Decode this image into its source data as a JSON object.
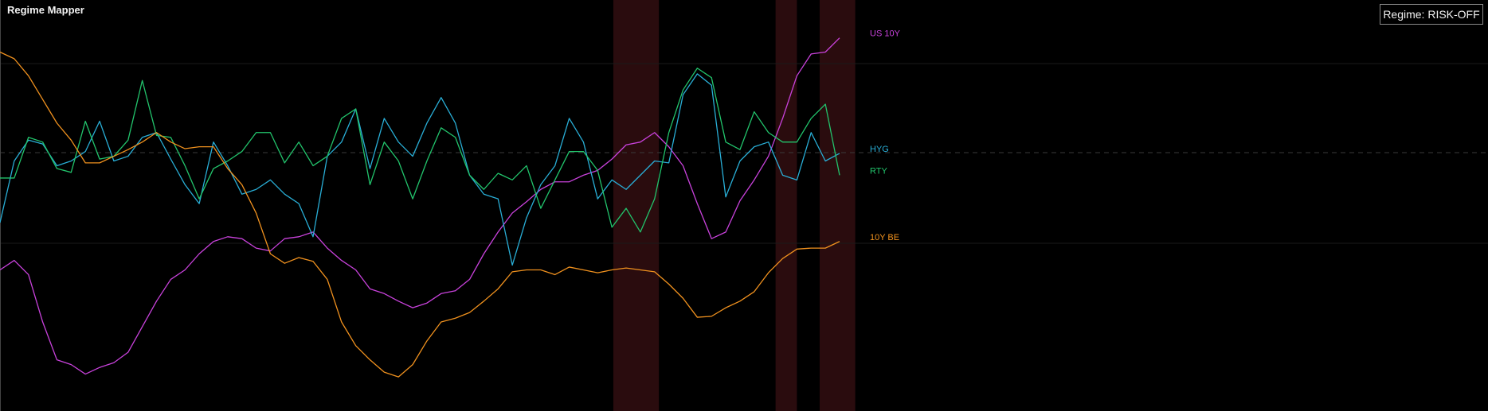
{
  "chart_data": {
    "type": "line",
    "title": "Regime Mapper",
    "regime_badge": "Regime: RISK-OFF",
    "x": [
      0,
      1,
      2,
      3,
      4,
      5,
      6,
      7,
      8,
      9,
      10,
      11,
      12,
      13,
      14,
      15,
      16,
      17,
      18,
      19,
      20,
      21,
      22,
      23,
      24,
      25,
      26,
      27,
      28,
      29,
      30,
      31,
      32,
      33,
      34,
      35,
      36,
      37,
      38,
      39,
      40,
      41,
      42,
      43,
      44,
      45,
      46,
      47,
      48,
      49,
      50,
      51,
      52,
      53,
      54,
      55,
      56,
      57,
      58,
      59
    ],
    "xlim": [
      0,
      59
    ],
    "ylim": [
      0,
      434
    ],
    "shaded_ranges": [
      [
        43.1,
        46.3
      ],
      [
        54.5,
        56
      ],
      [
        57.6,
        60.1
      ]
    ],
    "shade_color": "#2a0c0e",
    "series": [
      {
        "name": "US 10Y",
        "color": "#c942dc",
        "values": [
          149,
          159,
          144,
          94,
          54,
          49,
          39,
          46,
          51,
          62,
          89,
          116,
          139,
          149,
          166,
          179,
          184,
          182,
          172,
          169,
          182,
          184,
          189,
          172,
          159,
          149,
          129,
          124,
          116,
          109,
          114,
          124,
          127,
          139,
          166,
          189,
          209,
          221,
          234,
          242,
          242,
          249,
          254,
          266,
          281,
          284,
          294,
          279,
          259,
          219,
          182,
          189,
          222,
          244,
          269,
          309,
          354,
          377,
          379,
          394
        ]
      },
      {
        "name": "HYG",
        "color": "#29aed6",
        "values": [
          199,
          264,
          286,
          282,
          259,
          264,
          274,
          306,
          264,
          269,
          289,
          294,
          266,
          239,
          219,
          284,
          259,
          229,
          234,
          244,
          229,
          219,
          184,
          269,
          284,
          319,
          256,
          309,
          284,
          269,
          304,
          331,
          304,
          249,
          229,
          224,
          154,
          204,
          239,
          259,
          309,
          284,
          224,
          244,
          234,
          249,
          264,
          262,
          334,
          356,
          344,
          226,
          264,
          279,
          284,
          249,
          244,
          294,
          264,
          272
        ]
      },
      {
        "name": "RTY",
        "color": "#22c46c",
        "values": [
          246,
          246,
          289,
          284,
          256,
          252,
          306,
          266,
          269,
          286,
          349,
          291,
          289,
          259,
          224,
          256,
          264,
          274,
          294,
          294,
          262,
          284,
          259,
          269,
          309,
          319,
          239,
          284,
          264,
          224,
          264,
          299,
          289,
          249,
          234,
          251,
          244,
          259,
          214,
          244,
          274,
          274,
          254,
          194,
          214,
          189,
          224,
          294,
          339,
          362,
          352,
          284,
          276,
          316,
          294,
          284,
          284,
          309,
          324,
          249
        ]
      },
      {
        "name": "10Y BE",
        "color": "#f0911e",
        "values": [
          379,
          372,
          354,
          329,
          304,
          286,
          262,
          262,
          269,
          276,
          284,
          294,
          284,
          277,
          279,
          279,
          256,
          239,
          209,
          166,
          156,
          162,
          158,
          139,
          94,
          69,
          54,
          41,
          36,
          49,
          74,
          94,
          98,
          104,
          116,
          129,
          147,
          149,
          149,
          144,
          152,
          149,
          146,
          149,
          151,
          149,
          147,
          134,
          119,
          99,
          100,
          109,
          116,
          126,
          146,
          161,
          171,
          172,
          172,
          179
        ]
      }
    ]
  }
}
